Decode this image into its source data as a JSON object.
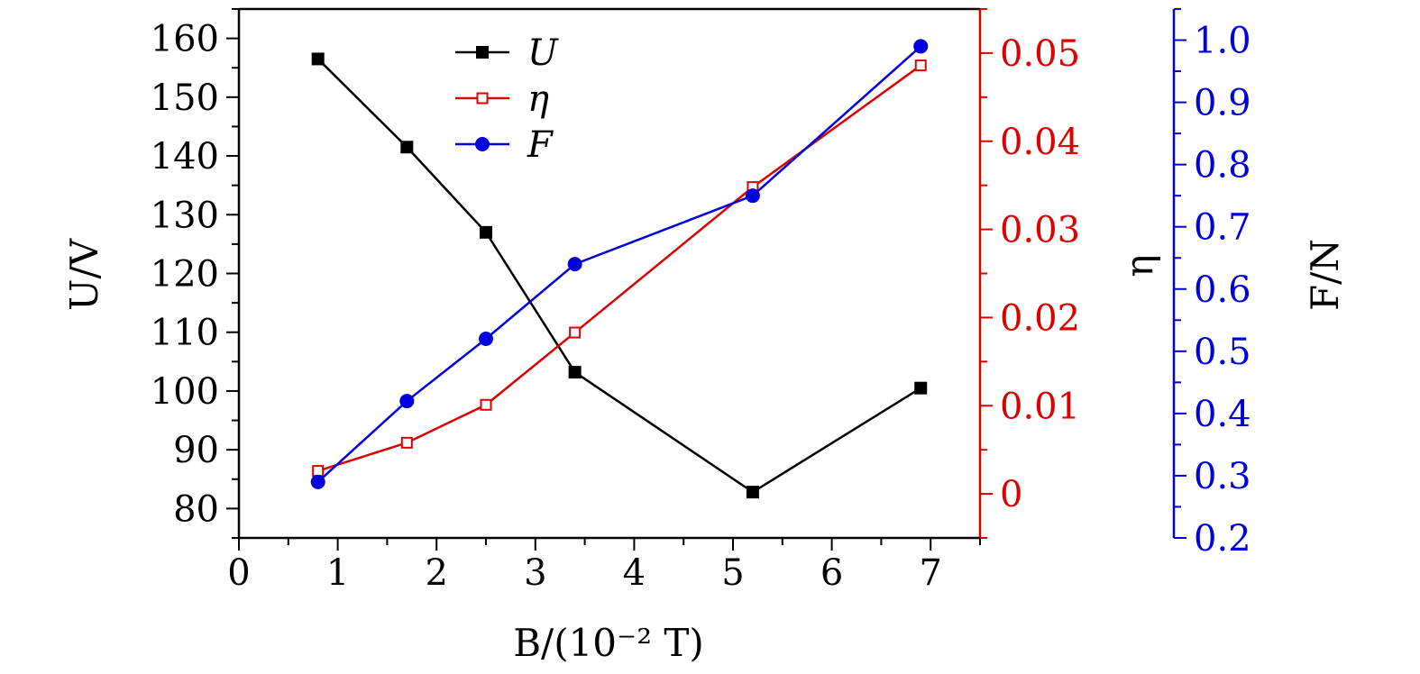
{
  "chart_data": {
    "type": "line",
    "xlabel": "B/(10⁻² T)",
    "xlim": [
      0,
      7.5
    ],
    "xticks": [
      0,
      1,
      2,
      3,
      4,
      5,
      6,
      7
    ],
    "x": [
      0.8,
      1.7,
      2.5,
      3.4,
      5.2,
      6.9
    ],
    "axes": {
      "left": {
        "label": "U/V",
        "color": "#000000",
        "ylim": [
          75,
          165
        ],
        "ticks": [
          80,
          90,
          100,
          110,
          120,
          130,
          140,
          150,
          160
        ],
        "tick_labels": [
          "80",
          "90",
          "100",
          "110",
          "120",
          "130",
          "140",
          "150",
          "160"
        ]
      },
      "right1": {
        "label": "η",
        "color": "#dd0000",
        "ylim": [
          -0.005,
          0.055
        ],
        "ticks": [
          0,
          0.01,
          0.02,
          0.03,
          0.04,
          0.05
        ],
        "tick_labels": [
          "0",
          "0.01",
          "0.02",
          "0.03",
          "0.04",
          "0.05"
        ]
      },
      "right2": {
        "label": "F/N",
        "color": "#0000dd",
        "ylim": [
          0.2,
          1.05
        ],
        "ticks": [
          0.2,
          0.3,
          0.4,
          0.5,
          0.6,
          0.7,
          0.8,
          0.9,
          1.0
        ],
        "tick_labels": [
          "0.2",
          "0.3",
          "0.4",
          "0.5",
          "0.6",
          "0.7",
          "0.8",
          "0.9",
          "1.0"
        ]
      }
    },
    "series": [
      {
        "name": "U",
        "axis": "left",
        "color": "#000000",
        "marker": "filled-square",
        "values": [
          156.5,
          141.5,
          127,
          103.2,
          82.8,
          100.5
        ]
      },
      {
        "name": "η",
        "axis": "right1",
        "color": "#dd0000",
        "marker": "open-square",
        "values": [
          0.0026,
          0.0058,
          0.0101,
          0.0183,
          0.0348,
          0.0486
        ]
      },
      {
        "name": "F",
        "axis": "right2",
        "color": "#0000dd",
        "marker": "filled-circle",
        "values": [
          0.29,
          0.42,
          0.52,
          0.64,
          0.75,
          0.99
        ]
      }
    ],
    "legend": {
      "placement": "top-left"
    },
    "grid": false
  }
}
